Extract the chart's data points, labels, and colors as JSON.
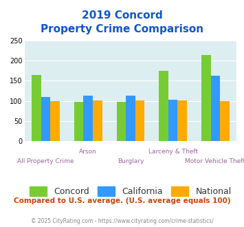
{
  "title_line1": "2019 Concord",
  "title_line2": "Property Crime Comparison",
  "categories": [
    "All Property Crime",
    "Arson",
    "Burglary",
    "Larceny & Theft",
    "Motor Vehicle Theft"
  ],
  "concord": [
    165,
    97,
    97,
    175,
    215
  ],
  "california": [
    110,
    113,
    113,
    102,
    163
  ],
  "national": [
    100,
    101,
    101,
    101,
    100
  ],
  "concord_color": "#77cc33",
  "california_color": "#3399ff",
  "national_color": "#ffaa00",
  "bg_color": "#ddeef0",
  "title_color": "#1155cc",
  "xlabel_color": "#996699",
  "footer_color": "#cc4400",
  "copyright_color": "#888888",
  "ylim": [
    0,
    250
  ],
  "yticks": [
    0,
    50,
    100,
    150,
    200,
    250
  ],
  "legend_labels": [
    "Concord",
    "California",
    "National"
  ],
  "footnote": "Compared to U.S. average. (U.S. average equals 100)",
  "copyright": "© 2025 CityRating.com - https://www.cityrating.com/crime-statistics/",
  "above_cats": [
    "Arson",
    "Larceny & Theft"
  ],
  "below_cats": [
    "All Property Crime",
    "Burglary",
    "Motor Vehicle Theft"
  ]
}
